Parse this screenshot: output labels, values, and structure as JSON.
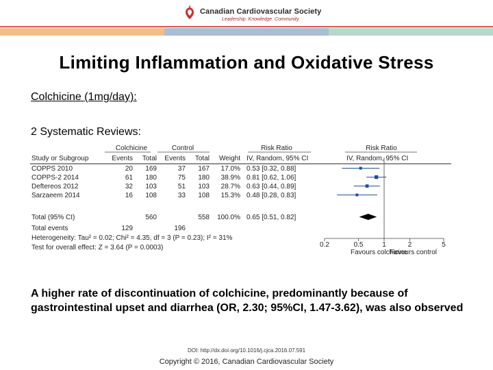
{
  "header": {
    "org_name": "Canadian Cardiovascular Society",
    "tagline": "Leadership. Knowledge. Community.",
    "logo_icon": "ccs-logo-icon",
    "colors": {
      "rule": "#d9534f",
      "band_a": "#f1be8a",
      "band_b": "#a9bdd3",
      "band_c": "#b6d7c9"
    }
  },
  "slide": {
    "title": "Limiting Inflammation and Oxidative Stress",
    "subtitle": "Colchicine (1mg/day):",
    "section_label": "2 Systematic Reviews:",
    "body": "A higher rate of discontinuation of colchicine, predominantly because of gastrointestinal upset and diarrhea (OR, 2.30; 95%CI, 1.47-3.62), was also observed",
    "doi": "DOI: http://dx.doi.org/10.1016/j.cjca.2016.07.591",
    "copyright": "Copyright © 2016, Canadian Cardiovascular Society"
  },
  "chart_data": {
    "type": "forest",
    "group_headers": {
      "treatment": "Colchicine",
      "control": "Control",
      "risk_ratio": "Risk Ratio",
      "risk_ratio_plot": "Risk Ratio"
    },
    "columns": [
      "Study or Subgroup",
      "Events",
      "Total",
      "Events",
      "Total",
      "Weight",
      "IV, Random, 95% CI",
      "IV, Random, 95% CI"
    ],
    "studies": [
      {
        "name": "COPPS 2010",
        "t_events": "20",
        "t_total": "169",
        "c_events": "37",
        "c_total": "167",
        "weight": "17.0%",
        "ci_text": "0.53 [0.32, 0.88]",
        "rr": 0.53,
        "lo": 0.32,
        "hi": 0.88
      },
      {
        "name": "COPPS-2 2014",
        "t_events": "61",
        "t_total": "180",
        "c_events": "75",
        "c_total": "180",
        "weight": "38.9%",
        "ci_text": "0.81 [0.62, 1.06]",
        "rr": 0.81,
        "lo": 0.62,
        "hi": 1.06
      },
      {
        "name": "Deftereos 2012",
        "t_events": "32",
        "t_total": "103",
        "c_events": "51",
        "c_total": "103",
        "weight": "28.7%",
        "ci_text": "0.63 [0.44, 0.89]",
        "rr": 0.63,
        "lo": 0.44,
        "hi": 0.89
      },
      {
        "name": "Sarzaeem 2014",
        "t_events": "16",
        "t_total": "108",
        "c_events": "33",
        "c_total": "108",
        "weight": "15.3%",
        "ci_text": "0.48 [0.28, 0.83]",
        "rr": 0.48,
        "lo": 0.28,
        "hi": 0.83
      }
    ],
    "total": {
      "name": "Total (95% CI)",
      "t_total": "560",
      "c_total": "558",
      "weight": "100.0%",
      "ci_text": "0.65 [0.51, 0.82]",
      "rr": 0.65,
      "lo": 0.51,
      "hi": 0.82
    },
    "total_events": {
      "label": "Total events",
      "t": "129",
      "c": "196"
    },
    "heterogeneity": "Heterogeneity: Tau² = 0.02; Chi² = 4.35, df = 3 (P = 0.23); I² = 31%",
    "overall_effect": "Test for overall effect: Z = 3.64 (P = 0.0003)",
    "axis": {
      "scale": "log",
      "ticks": [
        0.2,
        0.5,
        1,
        2,
        5
      ],
      "tick_labels": [
        "0.2",
        "0.5",
        "1",
        "2",
        "5"
      ]
    },
    "favours_left": "Favours colchicine",
    "favours_right": "Favours control"
  }
}
